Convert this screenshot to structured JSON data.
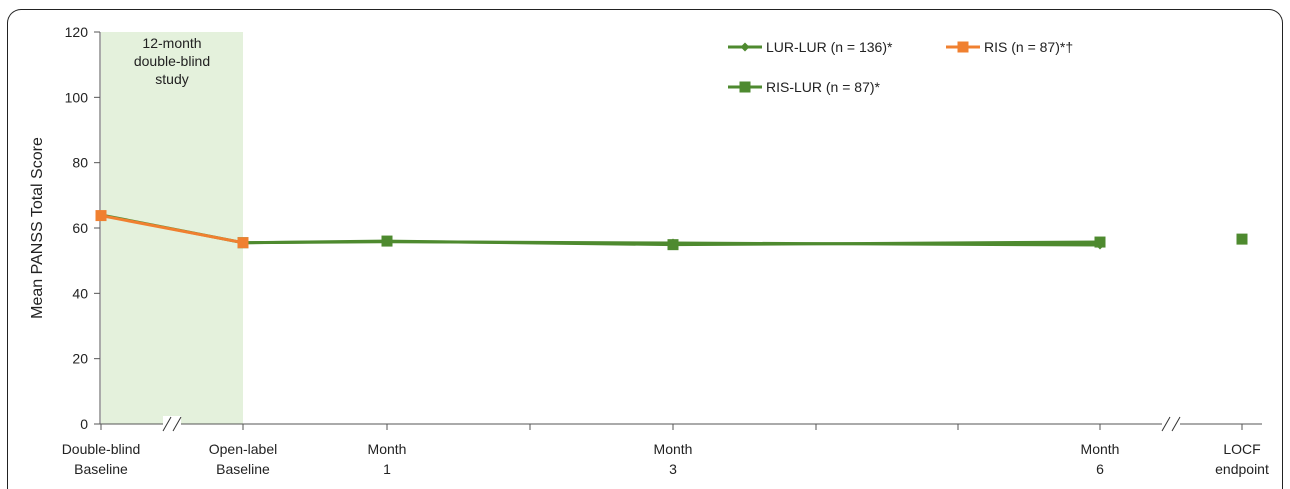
{
  "chart_data": {
    "type": "line",
    "ylabel": "Mean PANSS Total Score",
    "ylim": [
      0,
      120
    ],
    "yticks": [
      0,
      20,
      40,
      60,
      80,
      100,
      120
    ],
    "grid": false,
    "legend_position": "top-right",
    "shaded_region_label": [
      "12-month",
      "double-blind",
      "study"
    ],
    "categories": [
      [
        "Double-blind",
        "Baseline"
      ],
      [
        "Open-label",
        "Baseline"
      ],
      [
        "Month",
        "1"
      ],
      [
        "Month",
        "3"
      ],
      [
        "Month",
        "6"
      ],
      [
        "LOCF",
        "endpoint"
      ]
    ],
    "series": [
      {
        "name": "LUR-LUR (n = 136)*",
        "color": "#4e8a2f",
        "marker": "diamond",
        "values": [
          64.0,
          55.5,
          55.8,
          55.4,
          54.8,
          56.3
        ]
      },
      {
        "name": "RIS (n = 87)*†",
        "color": "#f08030",
        "marker": "square",
        "values": [
          63.8,
          55.5,
          null,
          null,
          null,
          null
        ]
      },
      {
        "name": "RIS-LUR (n = 87)*",
        "color": "#4e8a2f",
        "marker": "square",
        "values": [
          null,
          55.5,
          56.0,
          54.9,
          55.7,
          56.6
        ]
      }
    ]
  }
}
